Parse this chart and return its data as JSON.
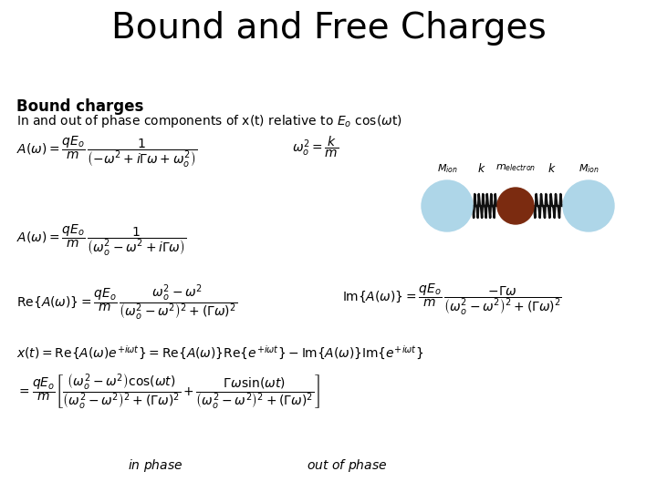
{
  "title": "Bound and Free Charges",
  "title_fontsize": 28,
  "bg_color": "#ffffff",
  "text_color": "#000000",
  "ion_color": "#aed6e8",
  "electron_color": "#7b2b10",
  "spring_color": "#111111",
  "eq_fontsize": 10,
  "small_fontsize": 9,
  "label_fontsize": 10
}
